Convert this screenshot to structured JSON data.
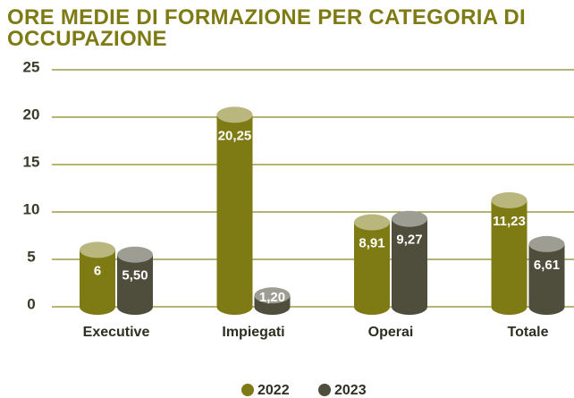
{
  "chart_data": {
    "type": "bar",
    "title": "ORE MEDIE DI FORMAZIONE PER CATEGORIA DI OCCUPAZIONE",
    "categories": [
      "Executive",
      "Impiegati",
      "Operai",
      "Totale"
    ],
    "series": [
      {
        "name": "2022",
        "color": "#7f7b14",
        "values": [
          6,
          20.25,
          8.91,
          11.23
        ],
        "value_labels": [
          "6",
          "20,25",
          "8,91",
          "11,23"
        ]
      },
      {
        "name": "2023",
        "color": "#4f4d3b",
        "values": [
          5.5,
          1.2,
          9.27,
          6.61
        ],
        "value_labels": [
          "5,50",
          "1,20",
          "9,27",
          "6,61"
        ]
      }
    ],
    "ylim": [
      0,
      25
    ],
    "yticks": [
      0,
      5,
      10,
      15,
      20,
      25
    ],
    "grid": true,
    "legend": "bottom"
  }
}
